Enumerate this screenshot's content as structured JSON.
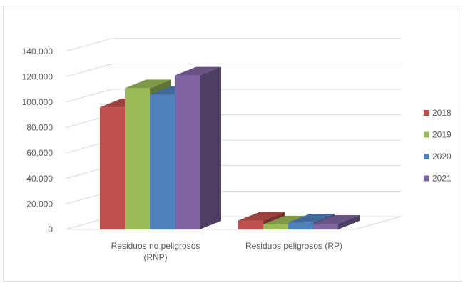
{
  "chart_data": {
    "type": "bar",
    "style": "3d-clustered-column",
    "categories": [
      [
        "Residuos no peligrosos",
        "(RNP)"
      ],
      [
        "Residuos peligrosos (RP)"
      ]
    ],
    "series": [
      {
        "name": "2018",
        "color": "#c0504d",
        "values": [
          96000,
          7000
        ]
      },
      {
        "name": "2019",
        "color": "#9bbb59",
        "values": [
          111000,
          4000
        ]
      },
      {
        "name": "2020",
        "color": "#4f81bd",
        "values": [
          106000,
          5500
        ]
      },
      {
        "name": "2021",
        "color": "#8064a2",
        "values": [
          121000,
          4500
        ]
      }
    ],
    "y_ticks": [
      "0",
      "20.000",
      "40.000",
      "60.000",
      "80.000",
      "100.000",
      "120.000",
      "140.000"
    ],
    "ylim": [
      0,
      140000
    ],
    "grid": true,
    "legend_position": "right"
  }
}
